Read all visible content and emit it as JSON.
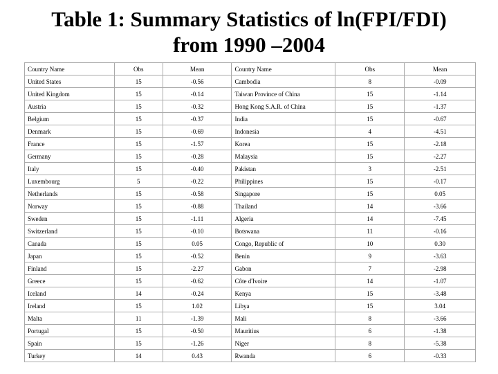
{
  "title": [
    "Table 1: Summary Statistics of ln(FPI/FDI)",
    "from 1990 –2004"
  ],
  "table": {
    "header": [
      "Country Name",
      "Obs",
      "Mean",
      "Country Name",
      "Obs",
      "Mean"
    ],
    "rows": [
      [
        "United States",
        "15",
        "-0.56",
        "Cambodia",
        "8",
        "-0.09"
      ],
      [
        "United Kingdom",
        "15",
        "-0.14",
        "Taiwan Province of China",
        "15",
        "-1.14"
      ],
      [
        "Austria",
        "15",
        "-0.32",
        "Hong Kong S.A.R. of China",
        "15",
        "-1.37"
      ],
      [
        "Belgium",
        "15",
        "-0.37",
        "India",
        "15",
        "-0.67"
      ],
      [
        "Denmark",
        "15",
        "-0.69",
        "Indonesia",
        "4",
        "-4.51"
      ],
      [
        "France",
        "15",
        "-1.57",
        "Korea",
        "15",
        "-2.18"
      ],
      [
        "Germany",
        "15",
        "-0.28",
        "Malaysia",
        "15",
        "-2.27"
      ],
      [
        "Italy",
        "15",
        "-0.40",
        "Pakistan",
        "3",
        "-2.51"
      ],
      [
        "Luxembourg",
        "5",
        "-0.22",
        "Philippines",
        "15",
        "-0.17"
      ],
      [
        "Netherlands",
        "15",
        "-0.58",
        "Singapore",
        "15",
        "0.05"
      ],
      [
        "Norway",
        "15",
        "-0.88",
        "Thailand",
        "14",
        "-3.66"
      ],
      [
        "Sweden",
        "15",
        "-1.11",
        "Algeria",
        "14",
        "-7.45"
      ],
      [
        "Switzerland",
        "15",
        "-0.10",
        "Botswana",
        "11",
        "-0.16"
      ],
      [
        "Canada",
        "15",
        "0.05",
        "Congo, Republic of",
        "10",
        "0.30"
      ],
      [
        "Japan",
        "15",
        "-0.52",
        "Benin",
        "9",
        "-3.63"
      ],
      [
        "Finland",
        "15",
        "-2.27",
        "Gabon",
        "7",
        "-2.98"
      ],
      [
        "Greece",
        "15",
        "-0.62",
        "Côte d'Ivoire",
        "14",
        "-1.07"
      ],
      [
        "Iceland",
        "14",
        "-0.24",
        "Kenya",
        "15",
        "-3.48"
      ],
      [
        "Ireland",
        "15",
        "1.02",
        "Libya",
        "15",
        "3.04"
      ],
      [
        "Malta",
        "11",
        "-1.39",
        "Mali",
        "8",
        "-3.66"
      ],
      [
        "Portugal",
        "15",
        "-0.50",
        "Mauritius",
        "6",
        "-1.38"
      ],
      [
        "Spain",
        "15",
        "-1.26",
        "Niger",
        "8",
        "-5.38"
      ],
      [
        "Turkey",
        "14",
        "0.43",
        "Rwanda",
        "6",
        "-0.33"
      ]
    ]
  }
}
